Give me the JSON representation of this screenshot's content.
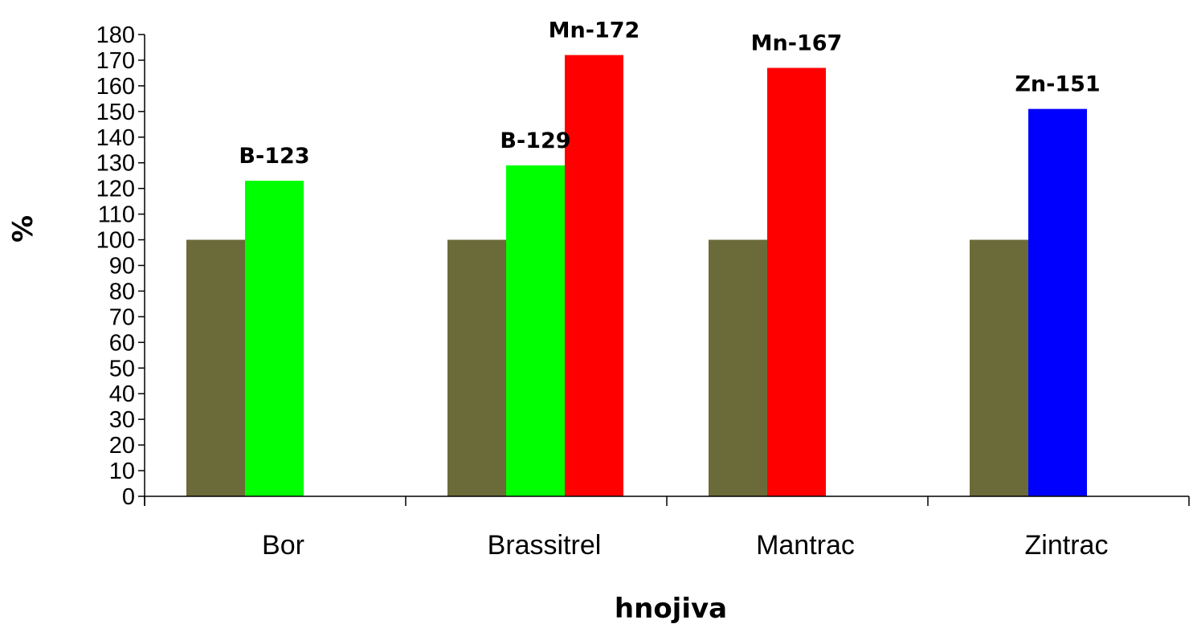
{
  "chart_data": {
    "type": "bar",
    "title": "",
    "xlabel": "hnojiva",
    "ylabel": "%",
    "ylim": [
      0,
      180
    ],
    "ytick_step": 10,
    "grid": false,
    "legend": "none",
    "categories": [
      "Bor",
      "Brassitrel",
      "Mantrac",
      "Zintrac"
    ],
    "groups": [
      {
        "category": "Bor",
        "bars": [
          {
            "value": 100,
            "color": "#6b6b3a",
            "label": ""
          },
          {
            "value": 123,
            "color": "#00ff00",
            "label": "B-123"
          }
        ]
      },
      {
        "category": "Brassitrel",
        "bars": [
          {
            "value": 100,
            "color": "#6b6b3a",
            "label": ""
          },
          {
            "value": 129,
            "color": "#00ff00",
            "label": "B-129"
          },
          {
            "value": 172,
            "color": "#ff0000",
            "label": "Mn-172"
          }
        ]
      },
      {
        "category": "Mantrac",
        "bars": [
          {
            "value": 100,
            "color": "#6b6b3a",
            "label": ""
          },
          {
            "value": 167,
            "color": "#ff0000",
            "label": "Mn-167"
          }
        ]
      },
      {
        "category": "Zintrac",
        "bars": [
          {
            "value": 100,
            "color": "#6b6b3a",
            "label": ""
          },
          {
            "value": 151,
            "color": "#0000ff",
            "label": "Zn-151"
          }
        ]
      }
    ]
  }
}
